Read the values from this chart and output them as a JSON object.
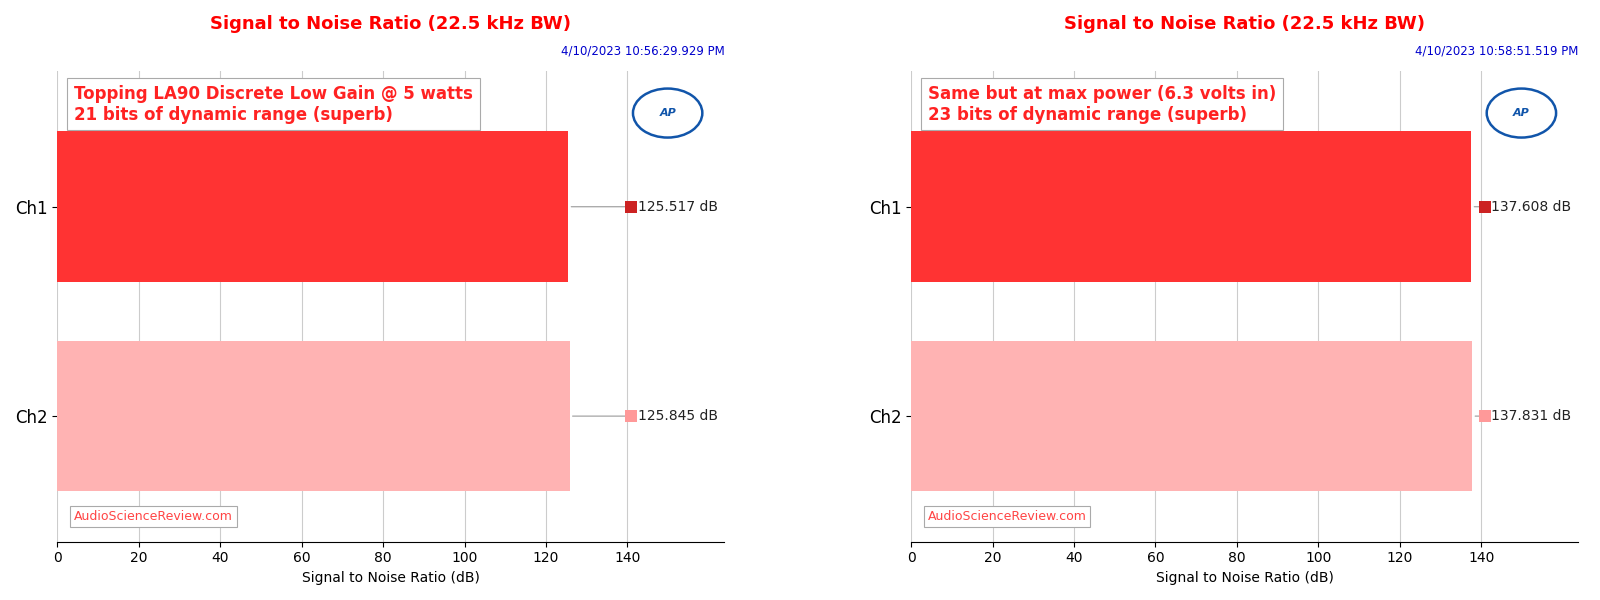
{
  "charts": [
    {
      "title": "Signal to Noise Ratio (22.5 kHz BW)",
      "datetime": "4/10/2023 10:56:29.929 PM",
      "annotation_line1": "Topping LA90 Discrete Low Gain @ 5 watts",
      "annotation_line2": "21 bits of dynamic range (superb)",
      "channels": [
        "Ch1",
        "Ch2"
      ],
      "values": [
        125.517,
        125.845
      ],
      "bar_colors": [
        "#FF3333",
        "#FFB3B3"
      ],
      "marker_colors": [
        "#CC2222",
        "#FF9999"
      ],
      "xlim": [
        0,
        140
      ],
      "xticks": [
        0,
        20,
        40,
        60,
        80,
        100,
        120,
        140
      ],
      "xlabel": "Signal to Noise Ratio (dB)",
      "value_labels": [
        "125.517 dB",
        "125.845 dB"
      ],
      "watermark": "AudioScienceReview.com"
    },
    {
      "title": "Signal to Noise Ratio (22.5 kHz BW)",
      "datetime": "4/10/2023 10:58:51.519 PM",
      "annotation_line1": "Same but at max power (6.3 volts in)",
      "annotation_line2": "23 bits of dynamic range (superb)",
      "channels": [
        "Ch1",
        "Ch2"
      ],
      "values": [
        137.608,
        137.831
      ],
      "bar_colors": [
        "#FF3333",
        "#FFB3B3"
      ],
      "marker_colors": [
        "#CC2222",
        "#FF9999"
      ],
      "xlim": [
        0,
        140
      ],
      "xticks": [
        0,
        20,
        40,
        60,
        80,
        100,
        120,
        140
      ],
      "xlabel": "Signal to Noise Ratio (dB)",
      "value_labels": [
        "137.608 dB",
        "137.831 dB"
      ],
      "watermark": "AudioScienceReview.com"
    }
  ],
  "title_color": "#FF0000",
  "datetime_color": "#0000CC",
  "annotation_color": "#FF2222",
  "watermark_color": "#FF4444",
  "bar_height": 0.72,
  "background_color": "#FFFFFF",
  "plot_bg_color": "#FFFFFF",
  "grid_color": "#CCCCCC",
  "ap_logo_color": "#1155AA"
}
